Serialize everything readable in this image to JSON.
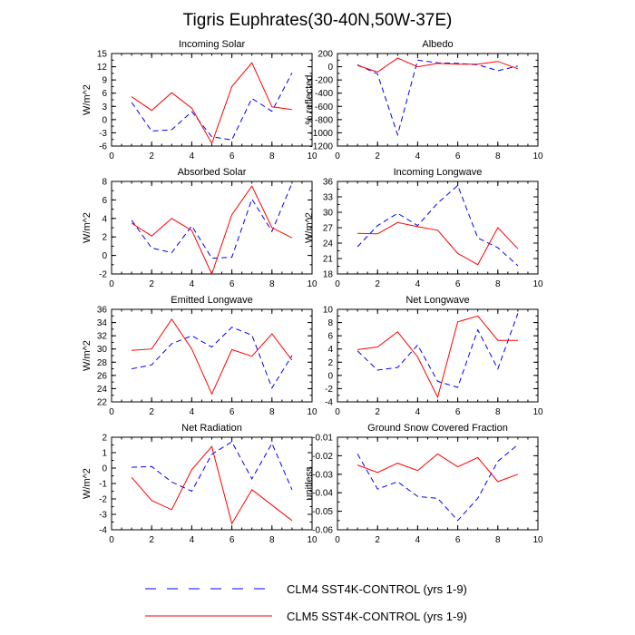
{
  "title": "Tigris Euphrates(30-40N,50W-37E)",
  "legend": {
    "placement": "bottom",
    "items": [
      {
        "label": "CLM4 SST4K-CONTROL (yrs 1-9)",
        "color": "#0000ff",
        "dash": "dashed"
      },
      {
        "label": "CLM5 SST4K-CONTROL (yrs 1-9)",
        "color": "#ff0000",
        "dash": "solid"
      }
    ]
  },
  "chart_data": [
    {
      "type": "line",
      "title": "Incoming Solar",
      "ylabel": "W/m^2",
      "xlim": [
        0,
        10
      ],
      "xticks": [
        0,
        2,
        4,
        6,
        8,
        10
      ],
      "ylim": [
        -6,
        15
      ],
      "yticks": [
        -6,
        -3,
        0,
        3,
        6,
        9,
        12,
        15
      ],
      "x": [
        1,
        2,
        3,
        4,
        5,
        6,
        7,
        8,
        9
      ],
      "series": [
        {
          "name": "CLM4 SST4K-CONTROL (yrs 1-9)",
          "values": [
            3.9,
            -2.6,
            -2.3,
            1.8,
            -3.9,
            -4.6,
            4.8,
            1.9,
            10.6
          ]
        },
        {
          "name": "CLM5 SST4K-CONTROL (yrs 1-9)",
          "values": [
            5.2,
            2.1,
            6.1,
            2.6,
            -5.4,
            7.5,
            12.9,
            2.9,
            2.3
          ]
        }
      ]
    },
    {
      "type": "line",
      "title": "Albedo",
      "ylabel": "% reflected",
      "xlim": [
        0,
        10
      ],
      "xticks": [
        0,
        2,
        4,
        6,
        8,
        10
      ],
      "ylim": [
        -1200,
        200
      ],
      "yticks": [
        -1200,
        -1000,
        -800,
        -600,
        -400,
        -200,
        0,
        200
      ],
      "x": [
        1,
        2,
        3,
        4,
        5,
        6,
        7,
        8,
        9
      ],
      "series": [
        {
          "name": "CLM4 SST4K-CONTROL (yrs 1-9)",
          "values": [
            30,
            -110,
            -1030,
            100,
            60,
            50,
            30,
            -60,
            10
          ]
        },
        {
          "name": "CLM5 SST4K-CONTROL (yrs 1-9)",
          "values": [
            20,
            -80,
            130,
            0,
            50,
            40,
            40,
            80,
            -30
          ]
        }
      ]
    },
    {
      "type": "line",
      "title": "Absorbed Solar",
      "ylabel": "W/m^2",
      "xlim": [
        0,
        10
      ],
      "xticks": [
        0,
        2,
        4,
        6,
        8,
        10
      ],
      "ylim": [
        -2,
        8
      ],
      "yticks": [
        -2.0,
        0.0,
        2.0,
        4.0,
        6.0,
        8.0
      ],
      "x": [
        1,
        2,
        3,
        4,
        5,
        6,
        7,
        8,
        9
      ],
      "series": [
        {
          "name": "CLM4 SST4K-CONTROL (yrs 1-9)",
          "values": [
            3.8,
            0.8,
            0.3,
            3.2,
            -0.3,
            -0.2,
            6.1,
            2.6,
            7.8
          ]
        },
        {
          "name": "CLM5 SST4K-CONTROL (yrs 1-9)",
          "values": [
            3.5,
            2.1,
            4.0,
            2.7,
            -2.0,
            4.4,
            7.5,
            3.0,
            1.9
          ]
        }
      ]
    },
    {
      "type": "line",
      "title": "Incoming Longwave",
      "ylabel": "W/m^2",
      "xlim": [
        0,
        10
      ],
      "xticks": [
        0,
        2,
        4,
        6,
        8,
        10
      ],
      "ylim": [
        18,
        36
      ],
      "yticks": [
        18.0,
        21.0,
        24.0,
        27.0,
        30.0,
        33.0,
        36.0
      ],
      "x": [
        1,
        2,
        3,
        4,
        5,
        6,
        7,
        8,
        9
      ],
      "series": [
        {
          "name": "CLM4 SST4K-CONTROL (yrs 1-9)",
          "values": [
            23.3,
            27.4,
            29.8,
            27.4,
            31.8,
            35.2,
            25.0,
            23.1,
            19.6
          ]
        },
        {
          "name": "CLM5 SST4K-CONTROL (yrs 1-9)",
          "values": [
            25.9,
            25.8,
            28.0,
            27.2,
            26.5,
            22.0,
            19.8,
            27.0,
            22.9
          ]
        }
      ]
    },
    {
      "type": "line",
      "title": "Emitted Longwave",
      "ylabel": "W/m^2",
      "xlim": [
        0,
        10
      ],
      "xticks": [
        0,
        2,
        4,
        6,
        8,
        10
      ],
      "ylim": [
        22,
        36
      ],
      "yticks": [
        22.0,
        24.0,
        26.0,
        28.0,
        30.0,
        32.0,
        34.0,
        36.0
      ],
      "x": [
        1,
        2,
        3,
        4,
        5,
        6,
        7,
        8,
        9
      ],
      "series": [
        {
          "name": "CLM4 SST4K-CONTROL (yrs 1-9)",
          "values": [
            27.0,
            27.6,
            30.8,
            32.0,
            30.3,
            33.3,
            32.1,
            24.1,
            29.0
          ]
        },
        {
          "name": "CLM5 SST4K-CONTROL (yrs 1-9)",
          "values": [
            29.8,
            30.0,
            34.5,
            30.0,
            23.2,
            29.9,
            28.9,
            32.3,
            28.3
          ]
        }
      ]
    },
    {
      "type": "line",
      "title": "Net Longwave",
      "ylabel": "",
      "xlim": [
        0,
        10
      ],
      "xticks": [
        0,
        2,
        4,
        6,
        8,
        10
      ],
      "ylim": [
        -4,
        10
      ],
      "yticks": [
        -4,
        -2,
        0,
        2,
        4,
        6,
        8,
        10
      ],
      "x": [
        1,
        2,
        3,
        4,
        5,
        6,
        7,
        8,
        9
      ],
      "series": [
        {
          "name": "CLM4 SST4K-CONTROL (yrs 1-9)",
          "values": [
            3.7,
            0.8,
            1.2,
            4.6,
            -0.9,
            -1.8,
            6.9,
            1.0,
            9.4
          ]
        },
        {
          "name": "CLM5 SST4K-CONTROL (yrs 1-9)",
          "values": [
            3.9,
            4.3,
            6.6,
            2.8,
            -3.3,
            8.1,
            9.0,
            5.3,
            5.3
          ]
        }
      ]
    },
    {
      "type": "line",
      "title": "Net Radiation",
      "ylabel": "W/m^2",
      "xlim": [
        0,
        10
      ],
      "xticks": [
        0,
        2,
        4,
        6,
        8,
        10
      ],
      "ylim": [
        -4,
        2
      ],
      "yticks": [
        -4.0,
        -3.0,
        -2.0,
        -1.0,
        0.0,
        1.0,
        2.0
      ],
      "x": [
        1,
        2,
        3,
        4,
        5,
        6,
        7,
        8,
        9
      ],
      "series": [
        {
          "name": "CLM4 SST4K-CONTROL (yrs 1-9)",
          "values": [
            0.05,
            0.1,
            -0.9,
            -1.5,
            0.9,
            1.7,
            -0.7,
            1.6,
            -1.4
          ]
        },
        {
          "name": "CLM5 SST4K-CONTROL (yrs 1-9)",
          "values": [
            -0.6,
            -2.1,
            -2.7,
            -0.1,
            1.4,
            -3.6,
            -1.4,
            -2.4,
            -3.4
          ]
        }
      ]
    },
    {
      "type": "line",
      "title": "Ground Snow Covered Fraction",
      "ylabel": "unitless",
      "xlim": [
        0,
        10
      ],
      "xticks": [
        0,
        2,
        4,
        6,
        8,
        10
      ],
      "ylim": [
        -0.06,
        -0.01
      ],
      "yticks": [
        -0.06,
        -0.05,
        -0.04,
        -0.03,
        -0.02,
        -0.01
      ],
      "x": [
        1,
        2,
        3,
        4,
        5,
        6,
        7,
        8,
        9
      ],
      "series": [
        {
          "name": "CLM4 SST4K-CONTROL (yrs 1-9)",
          "values": [
            -0.019,
            -0.038,
            -0.034,
            -0.042,
            -0.043,
            -0.055,
            -0.043,
            -0.023,
            -0.014
          ]
        },
        {
          "name": "CLM5 SST4K-CONTROL (yrs 1-9)",
          "values": [
            -0.025,
            -0.029,
            -0.024,
            -0.028,
            -0.019,
            -0.026,
            -0.021,
            -0.034,
            -0.03
          ]
        }
      ]
    }
  ]
}
